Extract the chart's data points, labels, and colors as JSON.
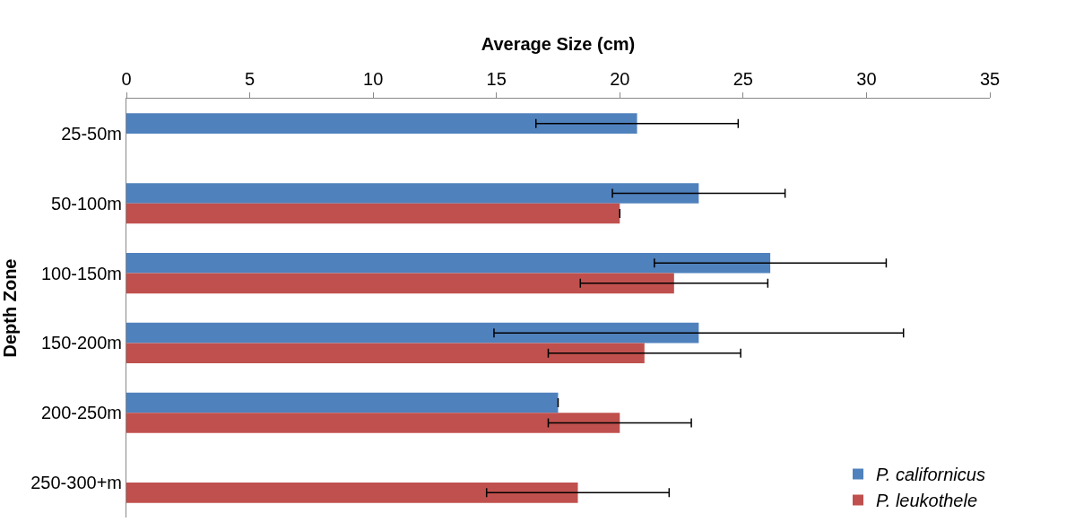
{
  "chart_data": {
    "type": "bar",
    "orientation": "horizontal",
    "xlabel": "Average Size (cm)",
    "ylabel": "Depth Zone",
    "categories": [
      "25-50m",
      "50-100m",
      "100-150m",
      "150-200m",
      "200-250m",
      "250-300+m"
    ],
    "series": [
      {
        "name": "P. californicus",
        "color": "#4f81bd",
        "values": [
          20.7,
          23.2,
          26.1,
          23.2,
          17.5,
          null
        ],
        "errors": [
          4.1,
          3.5,
          4.7,
          8.3,
          null,
          null
        ]
      },
      {
        "name": "P. leukothele",
        "color": "#c0504d",
        "values": [
          null,
          20.0,
          22.2,
          21.0,
          20.0,
          18.3
        ],
        "errors": [
          null,
          null,
          3.8,
          3.9,
          2.9,
          3.7
        ]
      }
    ],
    "xlim": [
      0,
      35
    ],
    "xticks": [
      0,
      5,
      10,
      15,
      20,
      25,
      30,
      35
    ],
    "legend": "bottom right"
  }
}
